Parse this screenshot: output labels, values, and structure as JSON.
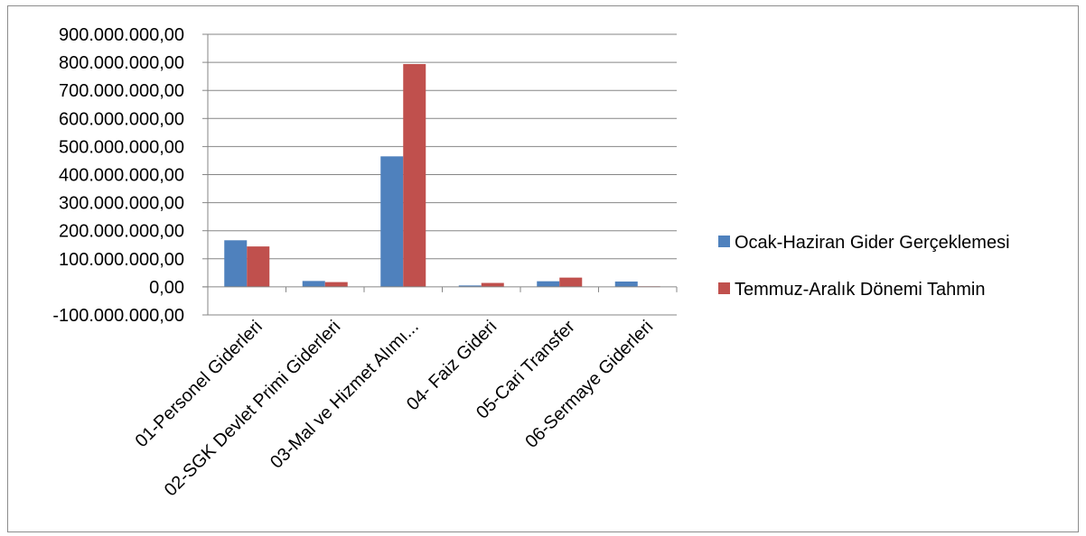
{
  "chart_data": {
    "type": "bar",
    "categories": [
      "01-Personel Giderleri",
      "02-SGK Devlet Primi Giderleri",
      "03-Mal ve Hizmet Alımı...",
      "04- Faiz Gideri",
      "05-Cari Transfer",
      "06-Sermaye Giderleri"
    ],
    "series": [
      {
        "name": "Ocak-Haziran Gider Gerçeklemesi",
        "color": "#4f81bd",
        "values": [
          166000000,
          21000000,
          465000000,
          5000000,
          20000000,
          19000000
        ]
      },
      {
        "name": "Temmuz-Aralık Dönemi Tahmin",
        "color": "#c0504d",
        "values": [
          144000000,
          17000000,
          794000000,
          14000000,
          33000000,
          2000000
        ]
      }
    ],
    "ylim": [
      -100000000,
      900000000
    ],
    "ytick_step": 100000000,
    "ytick_labels": [
      "900.000.000,00",
      "800.000.000,00",
      "700.000.000,00",
      "600.000.000,00",
      "500.000.000,00",
      "400.000.000,00",
      "300.000.000,00",
      "200.000.000,00",
      "100.000.000,00",
      "0,00",
      "-100.000.000,00"
    ],
    "grid": true,
    "legend_position": "right",
    "gridline_color": "#868686",
    "axis_color": "#868686"
  }
}
